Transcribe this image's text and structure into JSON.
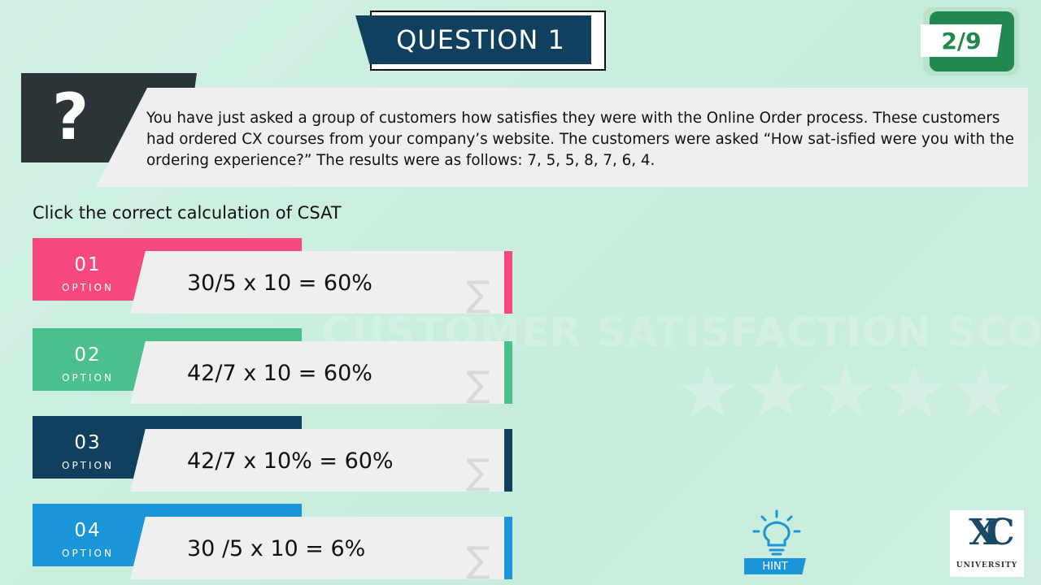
{
  "header": {
    "title": "QUESTION 1",
    "counter": "2/9"
  },
  "question": {
    "icon": "question-mark-icon",
    "mark": "?",
    "text": "You have just asked a group of customers how satisfies they were with the Online Order process.  These customers had ordered CX courses from your company’s website.  The customers were asked “How sat-isfied were you with the ordering experience?” The results were as follows: 7, 5, 5, 8, 7, 6, 4."
  },
  "instruction": "Click the correct calculation of  CSAT",
  "options": [
    {
      "number": "01",
      "label": "OPTION",
      "text": "30/5 x 10 = 60%",
      "color": "#f5497f"
    },
    {
      "number": "02",
      "label": "OPTION",
      "text": "42/7  x 10 = 60%",
      "color": "#4cbf8f"
    },
    {
      "number": "03",
      "label": "OPTION",
      "text": "42/7 x 10% = 60%",
      "color": "#11405f"
    },
    {
      "number": "04",
      "label": "OPTION",
      "text": "30 /5 x 10 = 6%",
      "color": "#1a96d8"
    }
  ],
  "watermark": "CUSTOMER SATISFACTION SCORES",
  "hint": {
    "label": "HINT",
    "icon": "lightbulb-icon"
  },
  "logo": {
    "mark": "XC",
    "text": "UNIVERSITY"
  }
}
